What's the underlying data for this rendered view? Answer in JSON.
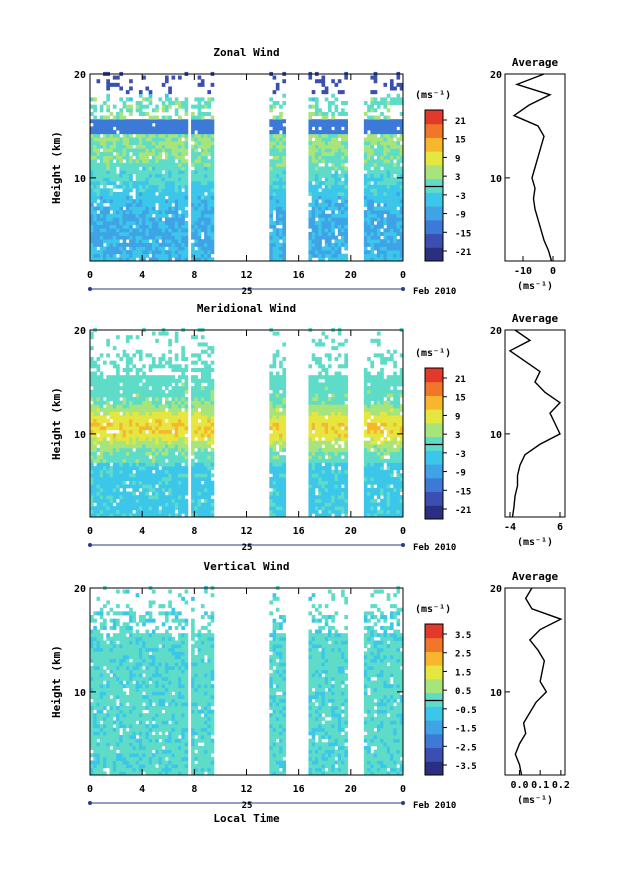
{
  "colors": {
    "ramp": [
      "#2b2f7f",
      "#3a4fb0",
      "#3d7ad8",
      "#3fa3e6",
      "#3cc7ea",
      "#5edcc8",
      "#a8e47c",
      "#e6e640",
      "#f7b62e",
      "#f2762a",
      "#e23a2a"
    ],
    "data_fill": "#5ed8e4"
  },
  "chart_data": [
    {
      "type": "heatmap",
      "title": "Zonal Wind",
      "ylabel": "Height (km)",
      "units_label": "(ms⁻¹)",
      "x_ticks": [
        "0",
        "4",
        "8",
        "12",
        "16",
        "20",
        "0"
      ],
      "y_ticks": [
        "20",
        "10"
      ],
      "date_mark": "25",
      "date_label": "Feb 2010",
      "xlim": [
        0,
        24
      ],
      "ylim": [
        2,
        20
      ],
      "colorbar_ticks": [
        "21",
        "15",
        "9",
        "3",
        "-3",
        "-9",
        "-15",
        "-21"
      ],
      "data_gaps_hours": [
        [
          7.5,
          7.8
        ],
        [
          9.5,
          13.8
        ],
        [
          15.0,
          16.8
        ],
        [
          19.8,
          21.0
        ]
      ],
      "average": {
        "title": "Average",
        "xlabel": "(ms⁻¹)",
        "x_ticks": [
          "-10",
          "0"
        ],
        "y_ticks": [
          "20",
          "10"
        ],
        "xlim": [
          -16,
          4
        ],
        "profile": [
          [
            2,
            -0.5
          ],
          [
            3,
            -1.5
          ],
          [
            4,
            -3
          ],
          [
            5,
            -4
          ],
          [
            6,
            -5
          ],
          [
            7,
            -6
          ],
          [
            8,
            -6.5
          ],
          [
            9,
            -6
          ],
          [
            10,
            -7
          ],
          [
            11,
            -6
          ],
          [
            12,
            -5
          ],
          [
            13,
            -4
          ],
          [
            14,
            -3
          ],
          [
            15,
            -5
          ],
          [
            16,
            -13
          ],
          [
            17,
            -8
          ],
          [
            18,
            -1
          ],
          [
            19,
            -12
          ],
          [
            20,
            -3
          ]
        ]
      }
    },
    {
      "type": "heatmap",
      "title": "Meridional Wind",
      "ylabel": "Height (km)",
      "units_label": "(ms⁻¹)",
      "x_ticks": [
        "0",
        "4",
        "8",
        "12",
        "16",
        "20",
        "0"
      ],
      "y_ticks": [
        "20",
        "10"
      ],
      "date_mark": "25",
      "date_label": "Feb 2010",
      "xlim": [
        0,
        24
      ],
      "ylim": [
        2,
        20
      ],
      "colorbar_ticks": [
        "21",
        "15",
        "9",
        "3",
        "-3",
        "-9",
        "-15",
        "-21"
      ],
      "data_gaps_hours": [
        [
          7.5,
          7.8
        ],
        [
          9.5,
          13.8
        ],
        [
          15.0,
          16.8
        ],
        [
          19.8,
          21.0
        ]
      ],
      "average": {
        "title": "Average",
        "xlabel": "(ms⁻¹)",
        "x_ticks": [
          "-4",
          "6"
        ],
        "y_ticks": [
          "20",
          "10"
        ],
        "xlim": [
          -5,
          7
        ],
        "profile": [
          [
            2,
            -3.5
          ],
          [
            3,
            -3.2
          ],
          [
            4,
            -3
          ],
          [
            5,
            -2.5
          ],
          [
            6,
            -2.5
          ],
          [
            7,
            -2
          ],
          [
            8,
            -1
          ],
          [
            9,
            2
          ],
          [
            10,
            6
          ],
          [
            11,
            5
          ],
          [
            12,
            4
          ],
          [
            13,
            6
          ],
          [
            14,
            3
          ],
          [
            15,
            1
          ],
          [
            16,
            2
          ],
          [
            17,
            -1
          ],
          [
            18,
            -4
          ],
          [
            19,
            0
          ],
          [
            20,
            -3
          ]
        ]
      }
    },
    {
      "type": "heatmap",
      "title": "Vertical Wind",
      "ylabel": "Height (km)",
      "xlabel": "Local Time",
      "units_label": "(ms⁻¹)",
      "x_ticks": [
        "0",
        "4",
        "8",
        "12",
        "16",
        "20",
        "0"
      ],
      "y_ticks": [
        "20",
        "10"
      ],
      "date_mark": "25",
      "date_label": "Feb 2010",
      "xlim": [
        0,
        24
      ],
      "ylim": [
        2,
        20
      ],
      "colorbar_ticks": [
        "3.5",
        "2.5",
        "1.5",
        "0.5",
        "-0.5",
        "-1.5",
        "-2.5",
        "-3.5"
      ],
      "data_gaps_hours": [
        [
          7.5,
          7.8
        ],
        [
          9.5,
          13.8
        ],
        [
          15.0,
          16.8
        ],
        [
          19.8,
          21.0
        ]
      ],
      "average": {
        "title": "Average",
        "xlabel": "(ms⁻¹)",
        "x_ticks": [
          "0.0",
          "0.1",
          "0.2"
        ],
        "y_ticks": [
          "20",
          "10"
        ],
        "xlim": [
          -0.07,
          0.22
        ],
        "profile": [
          [
            2,
            0.01
          ],
          [
            3,
            0.0
          ],
          [
            4,
            -0.02
          ],
          [
            5,
            0.0
          ],
          [
            6,
            0.03
          ],
          [
            7,
            0.02
          ],
          [
            8,
            0.05
          ],
          [
            9,
            0.08
          ],
          [
            10,
            0.13
          ],
          [
            11,
            0.1
          ],
          [
            12,
            0.11
          ],
          [
            13,
            0.12
          ],
          [
            14,
            0.09
          ],
          [
            15,
            0.05
          ],
          [
            16,
            0.1
          ],
          [
            17,
            0.2
          ],
          [
            18,
            0.06
          ],
          [
            19,
            0.03
          ],
          [
            20,
            0.06
          ]
        ]
      }
    }
  ]
}
